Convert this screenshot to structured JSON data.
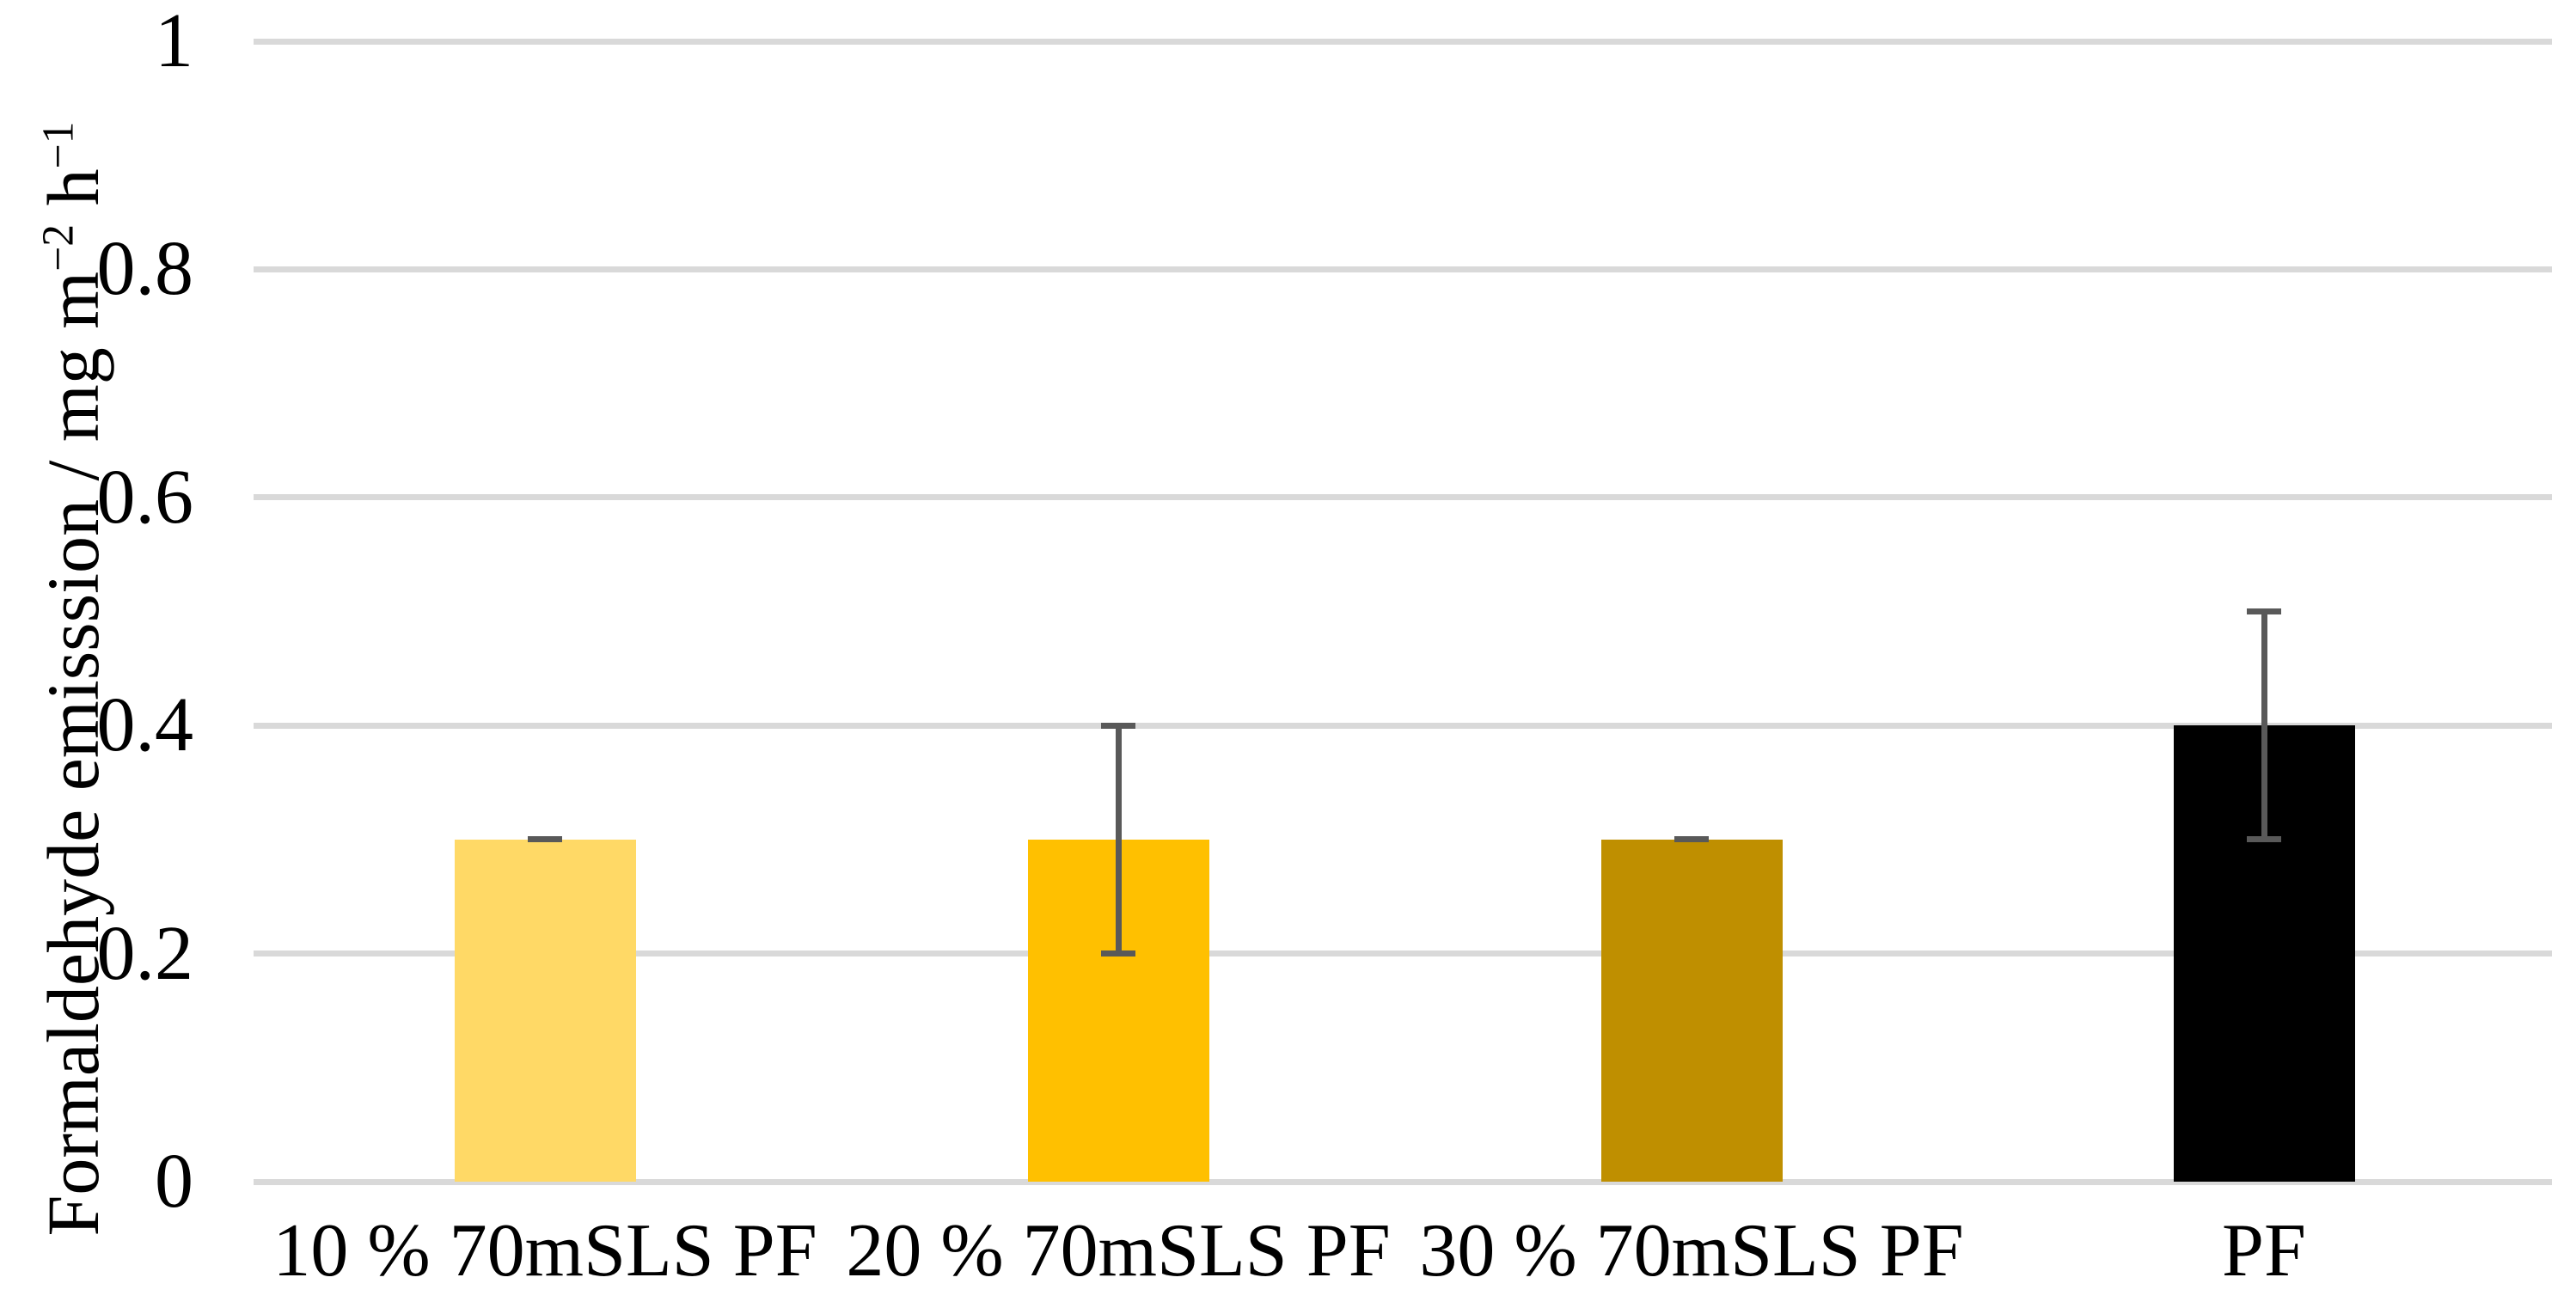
{
  "chart_data": {
    "type": "bar",
    "title": "",
    "categories": [
      "10 % 70mSLS PF",
      "20 % 70mSLS PF",
      "30 % 70mSLS PF",
      "PF"
    ],
    "values": [
      0.3,
      0.3,
      0.3,
      0.4
    ],
    "errors": [
      0,
      0.1,
      0,
      0.1
    ],
    "bar_colors": [
      "#FFD966",
      "#FFC000",
      "#BF8F00",
      "#000000"
    ],
    "error_bar_color": "#595959",
    "gridline_color": "#D9D9D9",
    "background_color": "#FFFFFF",
    "ylabel": "Formaldehyde emisssion / mg m−2 h−1",
    "ylabel_parts": {
      "prefix": "Formaldehyde emisssion / mg m",
      "sup1": "−2",
      "mid": " h",
      "sup2": "−1"
    },
    "xlabel": "",
    "ytick_labels": [
      "0",
      "0.2",
      "0.4",
      "0.6",
      "0.8",
      "1"
    ],
    "ytick_values": [
      0,
      0.2,
      0.4,
      0.6,
      0.8,
      1
    ],
    "ylim": [
      0,
      1
    ],
    "grid": true,
    "legend": "none"
  }
}
